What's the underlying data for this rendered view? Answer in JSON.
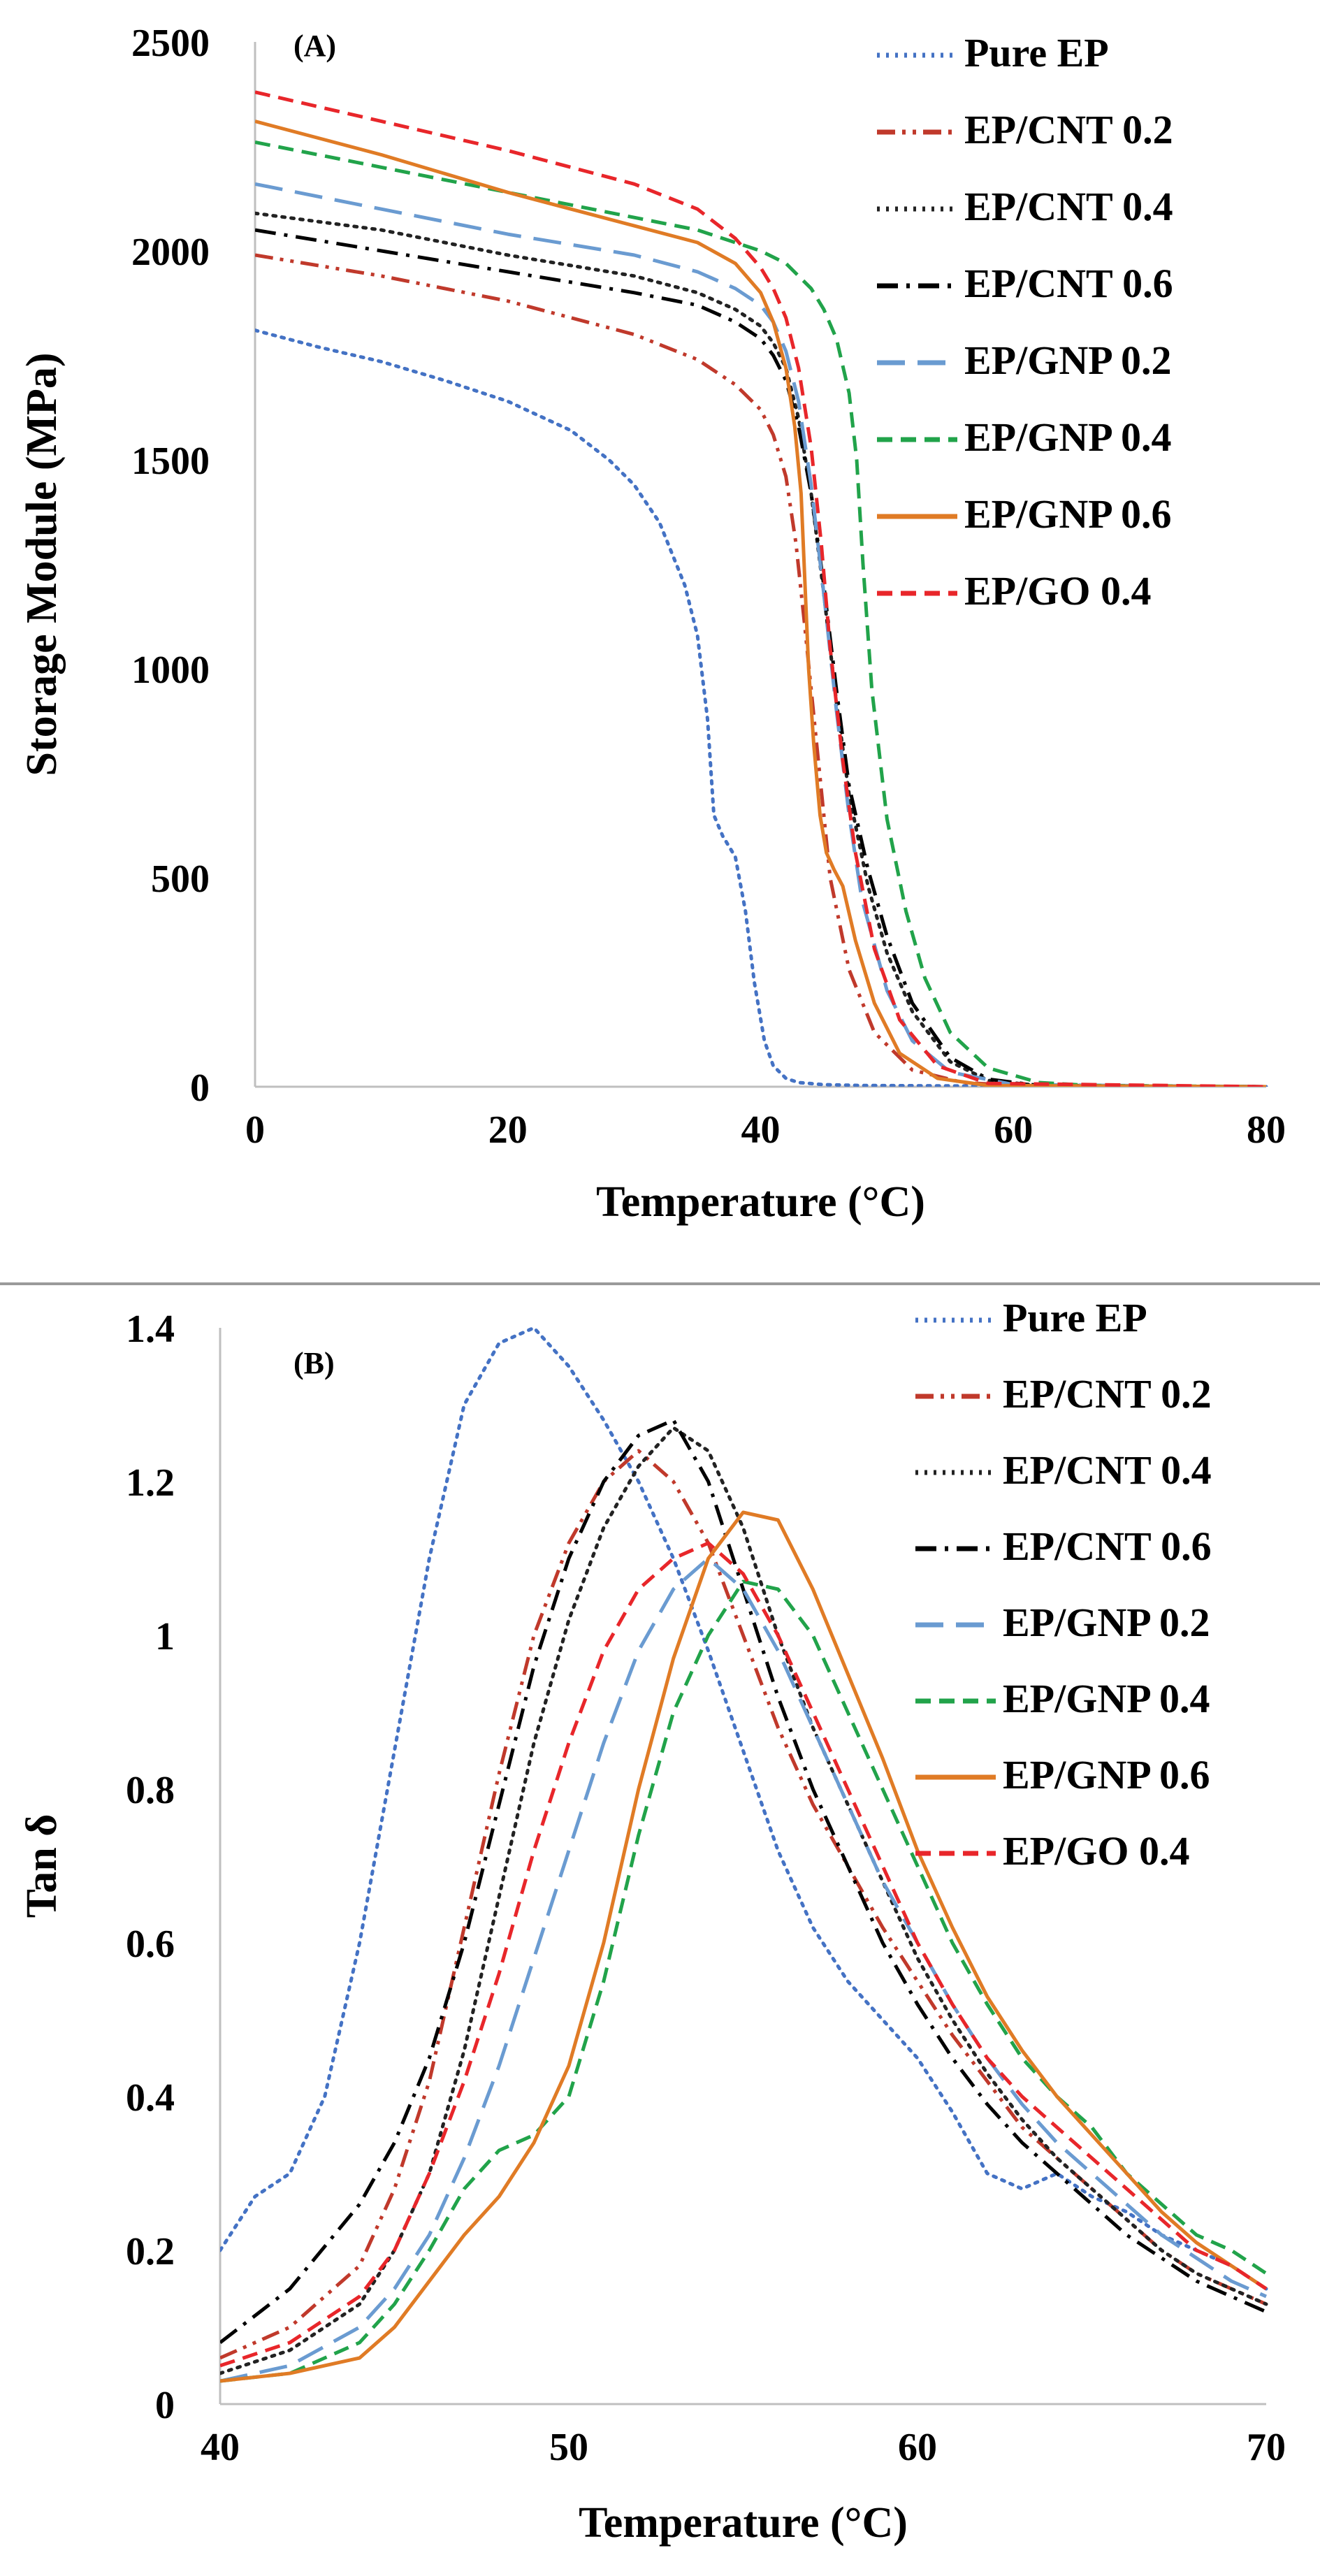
{
  "chart_data": [
    {
      "type": "line",
      "panel_label": "(A)",
      "xlabel": "Temperature (°C)",
      "ylabel": "Storage Module (MPa)",
      "xlim": [
        0,
        80
      ],
      "ylim": [
        0,
        2500
      ],
      "xticks": [
        "0",
        "20",
        "40",
        "60",
        "80"
      ],
      "yticks": [
        "0",
        "500",
        "1000",
        "1500",
        "2000",
        "2500"
      ],
      "legend_position": "top-right",
      "series": [
        {
          "name": "Pure EP",
          "color": "#4472c4",
          "dash": "dot",
          "x": [
            0,
            5,
            10,
            15,
            20,
            25,
            28,
            30,
            32,
            34,
            35,
            35.8,
            36.3,
            37,
            38,
            38.8,
            39.5,
            40.3,
            41,
            42,
            43,
            45,
            48,
            55,
            80
          ],
          "y": [
            1810,
            1770,
            1735,
            1690,
            1640,
            1570,
            1500,
            1440,
            1350,
            1200,
            1080,
            880,
            650,
            600,
            550,
            420,
            250,
            110,
            50,
            20,
            10,
            5,
            3,
            2,
            0
          ]
        },
        {
          "name": "EP/CNT 0.2",
          "color": "#c0392b",
          "dash": "dashdotdot",
          "x": [
            0,
            10,
            20,
            30,
            35,
            38,
            40,
            41,
            42,
            42.8,
            43.5,
            44.5,
            45.5,
            47,
            49,
            52,
            56,
            60,
            80
          ],
          "y": [
            1990,
            1940,
            1880,
            1800,
            1740,
            1680,
            1620,
            1560,
            1460,
            1300,
            1100,
            800,
            500,
            280,
            130,
            40,
            10,
            3,
            0
          ]
        },
        {
          "name": "EP/CNT 0.4",
          "color": "#222222",
          "dash": "dot",
          "x": [
            0,
            10,
            20,
            30,
            35,
            38,
            40,
            41,
            42,
            43,
            44,
            45,
            46,
            47,
            48.5,
            50,
            52,
            55,
            58,
            62,
            80
          ],
          "y": [
            2090,
            2050,
            1990,
            1940,
            1900,
            1860,
            1820,
            1780,
            1720,
            1600,
            1420,
            1180,
            920,
            700,
            480,
            320,
            180,
            60,
            15,
            3,
            0
          ]
        },
        {
          "name": "EP/CNT 0.6",
          "color": "#000000",
          "dash": "dashdot",
          "x": [
            0,
            10,
            20,
            30,
            35,
            38,
            40,
            41,
            42,
            43,
            44,
            45,
            46,
            47,
            48.5,
            50,
            52,
            55,
            58,
            62,
            80
          ],
          "y": [
            2050,
            2000,
            1950,
            1900,
            1870,
            1830,
            1790,
            1750,
            1690,
            1580,
            1420,
            1200,
            950,
            720,
            520,
            360,
            200,
            70,
            18,
            3,
            0
          ]
        },
        {
          "name": "EP/GNP 0.2",
          "color": "#6a9bd1",
          "dash": "longdash",
          "x": [
            0,
            10,
            20,
            30,
            35,
            38,
            40,
            41,
            42,
            43,
            44,
            45,
            46,
            47,
            48,
            50,
            52,
            55,
            60,
            80
          ],
          "y": [
            2160,
            2100,
            2040,
            1990,
            1950,
            1910,
            1870,
            1830,
            1760,
            1640,
            1440,
            1180,
            900,
            650,
            450,
            230,
            110,
            35,
            5,
            0
          ]
        },
        {
          "name": "EP/GNP 0.4",
          "color": "#21a34a",
          "dash": "dash",
          "x": [
            0,
            10,
            20,
            30,
            35,
            40,
            42,
            44,
            45,
            46,
            47,
            47.6,
            48.1,
            48.8,
            50,
            51.5,
            53,
            55,
            58,
            62,
            66,
            80
          ],
          "y": [
            2260,
            2200,
            2140,
            2080,
            2050,
            2000,
            1970,
            1910,
            1860,
            1790,
            1660,
            1500,
            1250,
            950,
            640,
            420,
            260,
            130,
            45,
            10,
            3,
            0
          ]
        },
        {
          "name": "EP/GNP 0.6",
          "color": "#e07b25",
          "dash": "solid",
          "x": [
            0,
            5,
            10,
            20,
            30,
            35,
            38,
            40,
            41,
            42,
            42.7,
            43.2,
            43.8,
            44.2,
            44.7,
            45.2,
            45.8,
            46.5,
            47.5,
            49,
            51,
            54,
            58,
            80
          ],
          "y": [
            2310,
            2270,
            2230,
            2140,
            2060,
            2020,
            1970,
            1900,
            1830,
            1720,
            1580,
            1420,
            1000,
            820,
            650,
            560,
            520,
            480,
            350,
            200,
            80,
            20,
            3,
            0
          ]
        },
        {
          "name": "EP/GO 0.4",
          "color": "#e8262a",
          "dash": "dash",
          "x": [
            0,
            10,
            20,
            30,
            35,
            38,
            40,
            41,
            42,
            43,
            44,
            44.8,
            45.5,
            46.5,
            47.5,
            49,
            51,
            54,
            58,
            80
          ],
          "y": [
            2380,
            2310,
            2240,
            2160,
            2100,
            2030,
            1960,
            1910,
            1840,
            1720,
            1530,
            1300,
            1050,
            780,
            560,
            330,
            160,
            50,
            8,
            0
          ]
        }
      ]
    },
    {
      "type": "line",
      "panel_label": "(B)",
      "xlabel": "Temperature (°C)",
      "ylabel": "Tan δ",
      "xlim": [
        40,
        70
      ],
      "ylim": [
        0,
        1.4
      ],
      "xticks": [
        "40",
        "50",
        "60",
        "70"
      ],
      "yticks": [
        "0",
        "0.2",
        "0.4",
        "0.6",
        "0.8",
        "1",
        "1.2",
        "1.4"
      ],
      "legend_position": "top-right",
      "series": [
        {
          "name": "Pure EP",
          "color": "#4472c4",
          "dash": "dot",
          "x": [
            40,
            41,
            42,
            43,
            44,
            45,
            46,
            47,
            48,
            49,
            50,
            51,
            52,
            53,
            54,
            55,
            56,
            57,
            58,
            59,
            60,
            61,
            62,
            63,
            64,
            65,
            66,
            67,
            68,
            69,
            70
          ],
          "y": [
            0.2,
            0.27,
            0.3,
            0.4,
            0.6,
            0.85,
            1.1,
            1.3,
            1.38,
            1.4,
            1.35,
            1.28,
            1.2,
            1.1,
            0.98,
            0.85,
            0.72,
            0.62,
            0.55,
            0.5,
            0.45,
            0.38,
            0.3,
            0.28,
            0.3,
            0.27,
            0.25,
            0.22,
            0.2,
            0.18,
            0.15
          ]
        },
        {
          "name": "EP/CNT 0.2",
          "color": "#c0392b",
          "dash": "dashdotdot",
          "x": [
            40,
            42,
            44,
            45,
            46,
            47,
            48,
            49,
            50,
            51,
            52,
            53,
            54,
            55,
            56,
            57,
            58,
            59,
            60,
            61,
            62,
            63,
            64,
            65,
            66,
            67,
            68,
            69,
            70
          ],
          "y": [
            0.06,
            0.1,
            0.18,
            0.28,
            0.42,
            0.62,
            0.82,
            1.0,
            1.12,
            1.2,
            1.24,
            1.2,
            1.12,
            1.0,
            0.88,
            0.78,
            0.7,
            0.62,
            0.55,
            0.48,
            0.42,
            0.36,
            0.32,
            0.28,
            0.24,
            0.2,
            0.17,
            0.15,
            0.13
          ]
        },
        {
          "name": "EP/CNT 0.4",
          "color": "#222222",
          "dash": "dot",
          "x": [
            40,
            42,
            44,
            45,
            46,
            47,
            48,
            49,
            50,
            51,
            52,
            53,
            54,
            55,
            56,
            57,
            58,
            59,
            60,
            61,
            62,
            63,
            64,
            65,
            66,
            67,
            68,
            69,
            70
          ],
          "y": [
            0.04,
            0.07,
            0.13,
            0.2,
            0.3,
            0.46,
            0.66,
            0.86,
            1.02,
            1.14,
            1.22,
            1.27,
            1.24,
            1.14,
            1.0,
            0.88,
            0.78,
            0.68,
            0.58,
            0.5,
            0.43,
            0.37,
            0.32,
            0.28,
            0.24,
            0.2,
            0.17,
            0.15,
            0.13
          ]
        },
        {
          "name": "EP/CNT 0.6",
          "color": "#000000",
          "dash": "dashdot",
          "x": [
            40,
            42,
            44,
            45,
            46,
            47,
            48,
            49,
            50,
            51,
            52,
            53,
            54,
            55,
            56,
            57,
            58,
            59,
            60,
            61,
            62,
            63,
            64,
            65,
            66,
            67,
            68,
            69,
            70
          ],
          "y": [
            0.08,
            0.15,
            0.26,
            0.34,
            0.45,
            0.6,
            0.78,
            0.96,
            1.1,
            1.2,
            1.26,
            1.28,
            1.2,
            1.06,
            0.92,
            0.8,
            0.7,
            0.6,
            0.52,
            0.45,
            0.39,
            0.34,
            0.3,
            0.26,
            0.22,
            0.19,
            0.16,
            0.14,
            0.12
          ]
        },
        {
          "name": "EP/GNP 0.2",
          "color": "#6a9bd1",
          "dash": "longdash",
          "x": [
            40,
            42,
            44,
            45,
            46,
            47,
            48,
            49,
            50,
            51,
            52,
            53,
            54,
            55,
            56,
            57,
            58,
            59,
            60,
            61,
            62,
            63,
            64,
            65,
            66,
            67,
            68,
            69,
            70
          ],
          "y": [
            0.03,
            0.05,
            0.1,
            0.15,
            0.22,
            0.32,
            0.44,
            0.58,
            0.72,
            0.86,
            0.98,
            1.06,
            1.1,
            1.06,
            0.98,
            0.88,
            0.78,
            0.68,
            0.6,
            0.52,
            0.45,
            0.39,
            0.34,
            0.3,
            0.26,
            0.22,
            0.19,
            0.16,
            0.14
          ]
        },
        {
          "name": "EP/GNP 0.4",
          "color": "#21a34a",
          "dash": "dash",
          "x": [
            40,
            42,
            44,
            45,
            46,
            47,
            48,
            49,
            50,
            51,
            52,
            53,
            54,
            55,
            56,
            57,
            58,
            59,
            60,
            61,
            62,
            63,
            64,
            65,
            66,
            67,
            68,
            69,
            70
          ],
          "y": [
            0.03,
            0.04,
            0.08,
            0.13,
            0.2,
            0.28,
            0.33,
            0.35,
            0.4,
            0.55,
            0.74,
            0.9,
            1.0,
            1.07,
            1.06,
            1.0,
            0.9,
            0.8,
            0.7,
            0.6,
            0.52,
            0.45,
            0.4,
            0.36,
            0.3,
            0.26,
            0.22,
            0.2,
            0.17
          ]
        },
        {
          "name": "EP/GNP 0.6",
          "color": "#e07b25",
          "dash": "solid",
          "x": [
            40,
            42,
            44,
            45,
            46,
            47,
            48,
            49,
            50,
            51,
            52,
            53,
            54,
            55,
            56,
            57,
            58,
            59,
            60,
            61,
            62,
            63,
            64,
            65,
            66,
            67,
            68,
            69,
            70
          ],
          "y": [
            0.03,
            0.04,
            0.06,
            0.1,
            0.16,
            0.22,
            0.27,
            0.34,
            0.44,
            0.6,
            0.8,
            0.97,
            1.1,
            1.16,
            1.15,
            1.06,
            0.95,
            0.84,
            0.72,
            0.62,
            0.53,
            0.46,
            0.4,
            0.35,
            0.3,
            0.25,
            0.21,
            0.18,
            0.15
          ]
        },
        {
          "name": "EP/GO 0.4",
          "color": "#e8262a",
          "dash": "dash",
          "x": [
            40,
            42,
            44,
            45,
            46,
            47,
            48,
            49,
            50,
            51,
            52,
            53,
            54,
            55,
            56,
            57,
            58,
            59,
            60,
            61,
            62,
            63,
            64,
            65,
            66,
            67,
            68,
            69,
            70
          ],
          "y": [
            0.05,
            0.08,
            0.14,
            0.2,
            0.3,
            0.42,
            0.56,
            0.72,
            0.86,
            0.98,
            1.06,
            1.1,
            1.12,
            1.08,
            1.0,
            0.9,
            0.8,
            0.7,
            0.6,
            0.52,
            0.45,
            0.4,
            0.36,
            0.32,
            0.28,
            0.24,
            0.2,
            0.18,
            0.15
          ]
        }
      ]
    }
  ]
}
